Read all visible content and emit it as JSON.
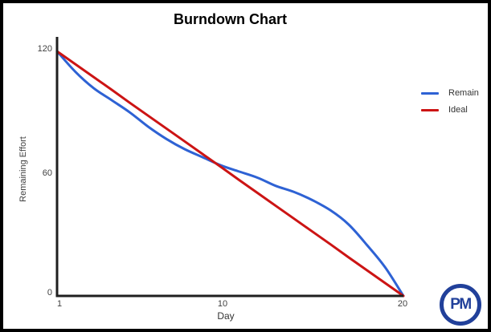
{
  "window": {
    "background": "#ffffff",
    "border_color": "#000000"
  },
  "chart": {
    "title": "Burndown Chart",
    "x_axis": {
      "label": "Day",
      "ticks": [
        "1",
        "10",
        "20"
      ]
    },
    "y_axis": {
      "label": "Remaining Effort",
      "ticks": [
        "0",
        "60",
        "120"
      ]
    },
    "legend": [
      {
        "label": "Remain",
        "color": "#2e62d4"
      },
      {
        "label": "Ideal",
        "color": "#cc1414"
      }
    ],
    "axis_color": "#1f1f1f"
  },
  "chart_data": {
    "type": "line",
    "title": "Burndown Chart",
    "xlabel": "Day",
    "ylabel": "Remaining Effort",
    "x": [
      1,
      2,
      3,
      4,
      5,
      6,
      7,
      8,
      9,
      10,
      11,
      12,
      13,
      14,
      15,
      16,
      17,
      18,
      19,
      20
    ],
    "series": [
      {
        "name": "Remain",
        "color": "#2e62d4",
        "smooth": true,
        "values": [
          120,
          110,
          102,
          96,
          90,
          83,
          77,
          72,
          68,
          64,
          61,
          58,
          54,
          51,
          47,
          42,
          35,
          25,
          14,
          0
        ]
      },
      {
        "name": "Ideal",
        "color": "#cc1414",
        "smooth": false,
        "values": [
          120,
          113.7,
          107.4,
          101.1,
          94.7,
          88.4,
          82.1,
          75.8,
          69.5,
          63.2,
          56.8,
          50.5,
          44.2,
          37.9,
          31.6,
          25.3,
          18.9,
          12.6,
          6.3,
          0
        ]
      }
    ],
    "xlim": [
      1,
      20
    ],
    "ylim": [
      0,
      120
    ],
    "x_ticks": [
      1,
      10,
      20
    ],
    "y_ticks": [
      0,
      60,
      120
    ],
    "grid": false,
    "legend_position": "right"
  },
  "logo": {
    "text": "PM",
    "color": "#21409a"
  }
}
